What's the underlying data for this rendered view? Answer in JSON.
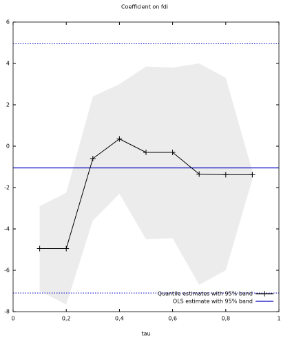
{
  "chart_data": {
    "type": "line",
    "title": "Coefficient on fdi",
    "x_label": "tau",
    "x": [
      0.1,
      0.2,
      0.3,
      0.4,
      0.5,
      0.6,
      0.7,
      0.8,
      0.9
    ],
    "series": [
      {
        "name": "Quantile estimates with 95% band",
        "color": "#000000",
        "band_color": "#ececec",
        "values": [
          -4.95,
          -4.95,
          -0.6,
          0.35,
          -0.3,
          -0.3,
          -1.35,
          -1.38,
          -1.38
        ],
        "upper": [
          -2.9,
          -2.25,
          2.4,
          3.0,
          3.85,
          3.8,
          4.0,
          3.3,
          -1.2
        ],
        "lower": [
          -7.0,
          -7.65,
          -3.6,
          -2.3,
          -4.5,
          -4.45,
          -6.7,
          -6.0,
          -1.6
        ]
      },
      {
        "name": "OLS estimate with 95% band",
        "color": "#0000c0",
        "value": -1.05,
        "upper": 4.95,
        "lower": -7.1
      }
    ],
    "xlim": [
      0,
      1
    ],
    "xticks": [
      0,
      {
        "value": 0.2,
        "label": "0,2"
      },
      {
        "value": 0.4,
        "label": "0,4"
      },
      {
        "value": 0.6,
        "label": "0,6"
      },
      {
        "value": 0.8,
        "label": "0,8"
      },
      1
    ],
    "ylim": [
      -8,
      6
    ],
    "yticks": [
      -8,
      -6,
      -4,
      -2,
      0,
      2,
      4,
      6
    ],
    "legend": "lower-right"
  }
}
